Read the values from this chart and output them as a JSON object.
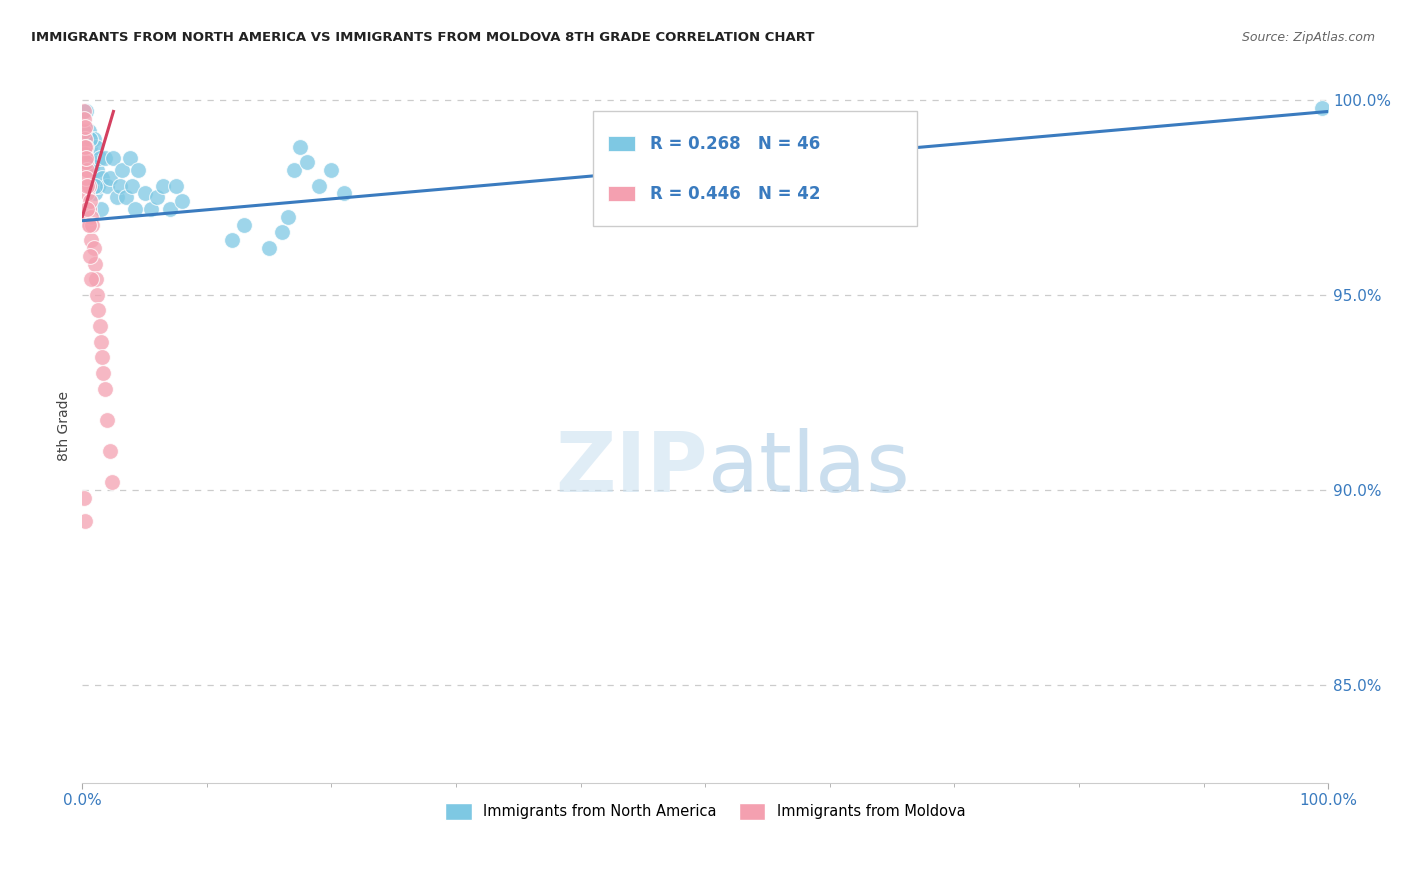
{
  "title": "IMMIGRANTS FROM NORTH AMERICA VS IMMIGRANTS FROM MOLDOVA 8TH GRADE CORRELATION CHART",
  "source": "Source: ZipAtlas.com",
  "ylabel": "8th Grade",
  "r1": 0.268,
  "n1": 46,
  "r2": 0.446,
  "n2": 42,
  "color_blue": "#7ec8e3",
  "color_pink": "#f4a0b0",
  "line_color_blue": "#3a7bbf",
  "line_color_pink": "#d44060",
  "background_color": "#ffffff",
  "grid_color": "#cccccc",
  "tick_color": "#3a7bbf",
  "title_color": "#222222",
  "ylabel_color": "#444444",
  "blue_scatter_x": [
    0.003,
    0.005,
    0.006,
    0.007,
    0.008,
    0.009,
    0.01,
    0.011,
    0.012,
    0.013,
    0.014,
    0.016,
    0.018,
    0.02,
    0.022,
    0.025,
    0.028,
    0.03,
    0.032,
    0.035,
    0.038,
    0.04,
    0.042,
    0.045,
    0.05,
    0.055,
    0.06,
    0.065,
    0.07,
    0.075,
    0.08,
    0.12,
    0.13,
    0.15,
    0.16,
    0.165,
    0.17,
    0.175,
    0.18,
    0.19,
    0.2,
    0.21,
    0.995,
    0.006,
    0.01,
    0.015
  ],
  "blue_scatter_y": [
    0.997,
    0.992,
    0.988,
    0.985,
    0.983,
    0.99,
    0.976,
    0.988,
    0.982,
    0.978,
    0.985,
    0.98,
    0.985,
    0.978,
    0.98,
    0.985,
    0.975,
    0.978,
    0.982,
    0.975,
    0.985,
    0.978,
    0.972,
    0.982,
    0.976,
    0.972,
    0.975,
    0.978,
    0.972,
    0.978,
    0.974,
    0.964,
    0.968,
    0.962,
    0.966,
    0.97,
    0.982,
    0.988,
    0.984,
    0.978,
    0.982,
    0.976,
    0.998,
    0.99,
    0.978,
    0.972
  ],
  "pink_scatter_x": [
    0.001,
    0.001,
    0.002,
    0.002,
    0.002,
    0.003,
    0.003,
    0.003,
    0.004,
    0.004,
    0.005,
    0.005,
    0.006,
    0.006,
    0.007,
    0.007,
    0.008,
    0.009,
    0.01,
    0.011,
    0.012,
    0.013,
    0.014,
    0.015,
    0.016,
    0.017,
    0.018,
    0.02,
    0.022,
    0.024,
    0.001,
    0.002,
    0.002,
    0.003,
    0.003,
    0.004,
    0.004,
    0.005,
    0.006,
    0.007,
    0.001,
    0.002
  ],
  "pink_scatter_y": [
    0.997,
    0.992,
    0.99,
    0.986,
    0.982,
    0.988,
    0.984,
    0.978,
    0.982,
    0.976,
    0.978,
    0.972,
    0.974,
    0.968,
    0.97,
    0.964,
    0.968,
    0.962,
    0.958,
    0.954,
    0.95,
    0.946,
    0.942,
    0.938,
    0.934,
    0.93,
    0.926,
    0.918,
    0.91,
    0.902,
    0.995,
    0.993,
    0.988,
    0.985,
    0.98,
    0.978,
    0.972,
    0.968,
    0.96,
    0.954,
    0.898,
    0.892
  ],
  "blue_line_x0": 0.0,
  "blue_line_x1": 1.0,
  "blue_line_y0": 0.969,
  "blue_line_y1": 0.997,
  "pink_line_x0": 0.0,
  "pink_line_x1": 0.025,
  "pink_line_y0": 0.97,
  "pink_line_y1": 0.997,
  "xlim": [
    0.0,
    1.0
  ],
  "ylim": [
    0.825,
    1.008
  ],
  "ytick_vals": [
    0.85,
    0.9,
    0.95,
    1.0
  ],
  "ytick_labels": [
    "85.0%",
    "90.0%",
    "95.0%",
    "100.0%"
  ],
  "xtick_vals": [
    0.0,
    1.0
  ],
  "xtick_labels": [
    "0.0%",
    "100.0%"
  ]
}
